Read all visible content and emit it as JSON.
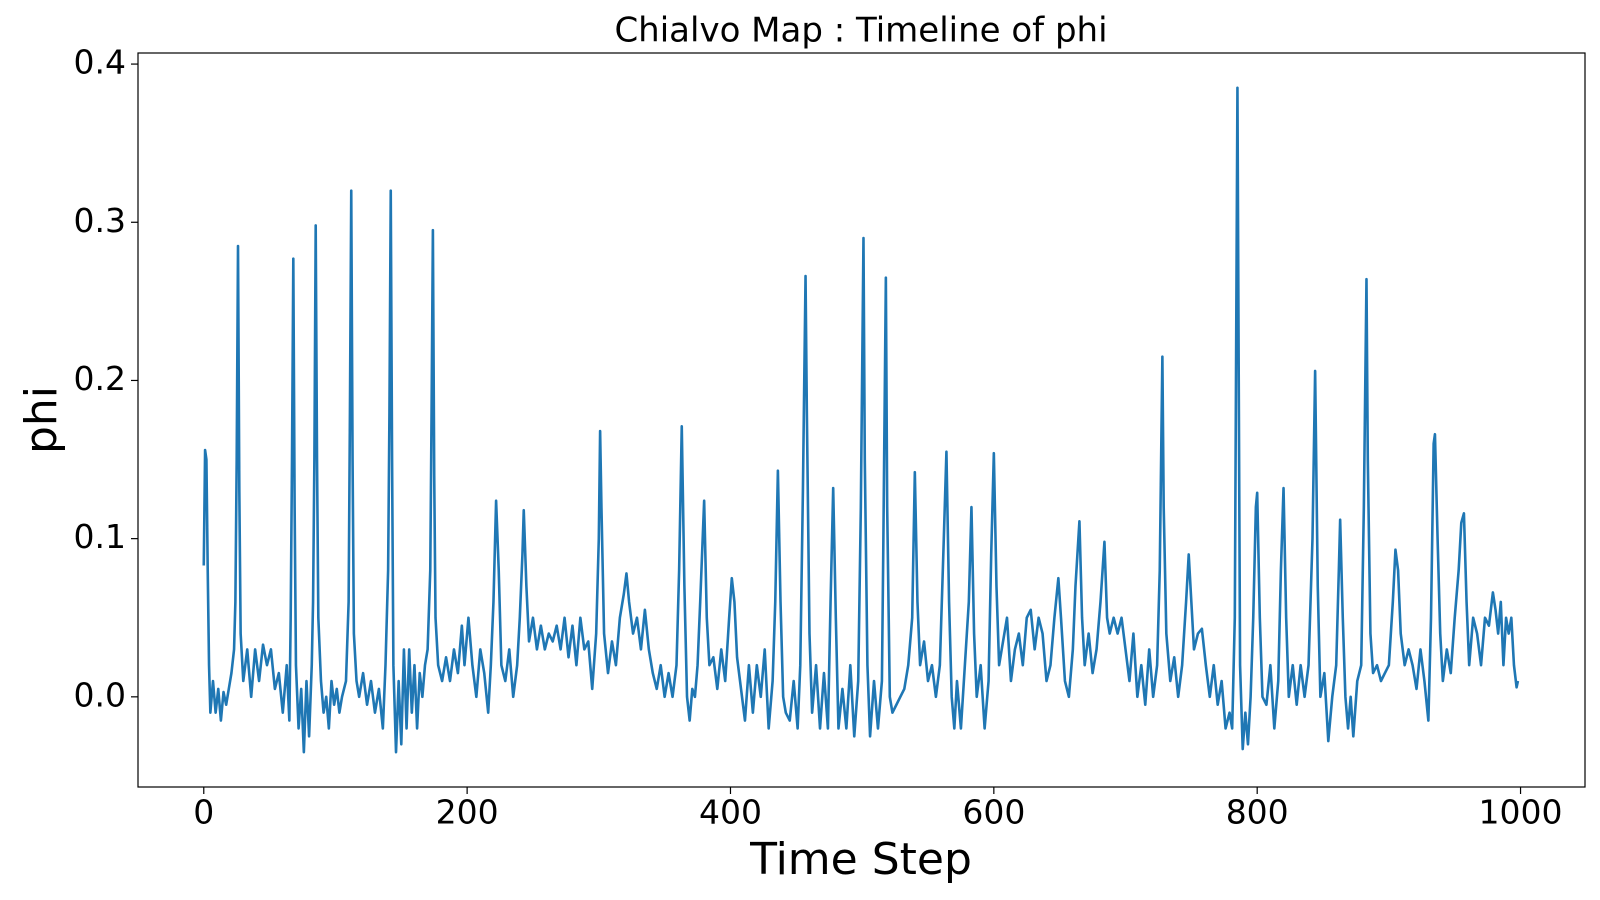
{
  "chart_data": {
    "type": "line",
    "title": "Chialvo Map : Timeline of phi",
    "xlabel": "Time Step",
    "ylabel": "phi",
    "xlim": [
      -49.95,
      1048.95
    ],
    "ylim": [
      -0.057,
      0.407
    ],
    "xticks": [
      0,
      200,
      400,
      600,
      800,
      1000
    ],
    "yticks": [
      {
        "value": 0,
        "label": "0.0"
      },
      0.1,
      0.2,
      0.3,
      0.4
    ],
    "grid": false,
    "series": [
      {
        "color": "#1f77b4",
        "x": [
          0,
          1,
          2,
          3,
          4,
          5,
          7,
          9,
          11,
          13,
          15,
          17,
          19,
          21,
          23,
          24,
          25,
          26,
          27,
          28,
          30,
          33,
          36,
          39,
          42,
          45,
          48,
          51,
          54,
          57,
          60,
          63,
          65,
          66,
          67,
          68,
          69,
          70,
          72,
          74,
          76,
          78,
          80,
          82,
          83,
          84,
          85,
          86,
          87,
          89,
          91,
          93,
          95,
          97,
          99,
          101,
          103,
          105,
          108,
          110,
          111,
          112,
          113,
          114,
          116,
          118,
          121,
          124,
          127,
          130,
          133,
          136,
          138,
          140,
          141,
          142,
          143,
          144,
          146,
          148,
          150,
          152,
          154,
          156,
          158,
          160,
          162,
          164,
          166,
          168,
          170,
          172,
          173,
          174,
          175,
          176,
          178,
          181,
          184,
          187,
          190,
          193,
          196,
          198,
          201,
          204,
          207,
          210,
          213,
          216,
          218,
          220,
          222,
          224,
          226,
          229,
          232,
          235,
          238,
          240,
          242,
          243,
          245,
          247,
          250,
          253,
          256,
          259,
          262,
          265,
          268,
          271,
          274,
          277,
          280,
          283,
          286,
          289,
          292,
          295,
          298,
          300,
          301,
          302,
          304,
          307,
          310,
          313,
          316,
          319,
          321,
          323,
          326,
          329,
          332,
          335,
          338,
          341,
          344,
          347,
          350,
          353,
          356,
          359,
          361,
          363,
          365,
          367,
          369,
          371,
          373,
          375,
          377,
          380,
          382,
          384,
          387,
          390,
          393,
          396,
          399,
          401,
          403,
          405,
          408,
          411,
          414,
          417,
          420,
          423,
          426,
          429,
          432,
          434,
          436,
          438,
          440,
          442,
          445,
          448,
          451,
          453,
          455,
          457,
          458,
          460,
          462,
          465,
          468,
          471,
          474,
          476,
          478,
          480,
          482,
          485,
          488,
          491,
          494,
          497,
          499,
          501,
          502,
          504,
          506,
          509,
          512,
          515,
          516,
          518,
          519,
          521,
          523,
          526,
          529,
          532,
          535,
          538,
          540,
          542,
          544,
          547,
          550,
          553,
          556,
          559,
          562,
          564,
          566,
          568,
          570,
          572,
          575,
          578,
          581,
          583,
          585,
          587,
          590,
          593,
          596,
          598,
          600,
          602,
          604,
          607,
          610,
          613,
          616,
          619,
          622,
          625,
          628,
          631,
          634,
          637,
          640,
          643,
          646,
          649,
          651,
          654,
          657,
          660,
          662,
          665,
          667,
          669,
          672,
          675,
          678,
          681,
          684,
          686,
          688,
          691,
          694,
          697,
          700,
          703,
          706,
          709,
          712,
          715,
          718,
          721,
          724,
          726,
          728,
          729,
          731,
          734,
          737,
          740,
          743,
          746,
          748,
          750,
          752,
          755,
          758,
          761,
          764,
          767,
          770,
          773,
          776,
          779,
          781,
          783,
          785,
          786,
          787,
          789,
          791,
          793,
          795,
          797,
          799,
          800,
          802,
          804,
          807,
          810,
          813,
          816,
          818,
          820,
          822,
          824,
          827,
          830,
          833,
          836,
          839,
          842,
          844,
          846,
          848,
          851,
          854,
          857,
          860,
          862,
          863,
          865,
          867,
          869,
          871,
          873,
          876,
          879,
          881,
          883,
          884,
          886,
          888,
          891,
          894,
          897,
          900,
          903,
          905,
          907,
          909,
          912,
          915,
          918,
          921,
          924,
          927,
          930,
          932,
          934,
          935,
          937,
          939,
          941,
          944,
          947,
          950,
          953,
          955,
          957,
          959,
          961,
          964,
          967,
          970,
          973,
          976,
          979,
          981,
          983,
          985,
          987,
          989,
          991,
          993,
          995,
          997,
          998
        ],
        "values": [
          0.083,
          0.156,
          0.15,
          0.08,
          0.02,
          -0.01,
          0.01,
          -0.01,
          0.005,
          -0.015,
          0.003,
          -0.005,
          0.005,
          0.015,
          0.03,
          0.06,
          0.15,
          0.285,
          0.13,
          0.04,
          0.01,
          0.03,
          0.0,
          0.03,
          0.01,
          0.033,
          0.02,
          0.03,
          0.005,
          0.015,
          -0.01,
          0.02,
          -0.015,
          0.05,
          0.15,
          0.277,
          0.12,
          0.02,
          -0.02,
          0.005,
          -0.035,
          0.01,
          -0.025,
          0.02,
          0.06,
          0.15,
          0.298,
          0.15,
          0.05,
          0.01,
          -0.01,
          0.0,
          -0.02,
          0.01,
          -0.005,
          0.005,
          -0.01,
          0.0,
          0.01,
          0.06,
          0.18,
          0.32,
          0.15,
          0.04,
          0.01,
          0.0,
          0.015,
          -0.005,
          0.01,
          -0.01,
          0.005,
          -0.02,
          0.02,
          0.08,
          0.18,
          0.32,
          0.15,
          0.02,
          -0.035,
          0.01,
          -0.03,
          0.03,
          -0.02,
          0.03,
          -0.01,
          0.02,
          -0.02,
          0.015,
          0.0,
          0.02,
          0.03,
          0.08,
          0.18,
          0.295,
          0.14,
          0.05,
          0.02,
          0.01,
          0.025,
          0.01,
          0.03,
          0.015,
          0.045,
          0.02,
          0.05,
          0.02,
          0.0,
          0.03,
          0.015,
          -0.01,
          0.02,
          0.06,
          0.124,
          0.08,
          0.02,
          0.01,
          0.03,
          0.0,
          0.02,
          0.05,
          0.09,
          0.118,
          0.07,
          0.035,
          0.05,
          0.03,
          0.045,
          0.03,
          0.04,
          0.035,
          0.045,
          0.03,
          0.05,
          0.025,
          0.045,
          0.02,
          0.05,
          0.03,
          0.035,
          0.005,
          0.04,
          0.1,
          0.168,
          0.12,
          0.04,
          0.015,
          0.035,
          0.02,
          0.05,
          0.065,
          0.078,
          0.06,
          0.04,
          0.05,
          0.03,
          0.055,
          0.03,
          0.015,
          0.005,
          0.02,
          0.0,
          0.015,
          0.0,
          0.02,
          0.08,
          0.171,
          0.07,
          0.0,
          -0.015,
          0.005,
          0.0,
          0.02,
          0.06,
          0.124,
          0.05,
          0.02,
          0.025,
          0.005,
          0.03,
          0.01,
          0.05,
          0.075,
          0.06,
          0.025,
          0.005,
          -0.015,
          0.02,
          -0.01,
          0.02,
          0.0,
          0.03,
          -0.02,
          0.01,
          0.06,
          0.143,
          0.06,
          0.0,
          -0.01,
          -0.015,
          0.01,
          -0.02,
          0.02,
          0.13,
          0.266,
          0.18,
          0.04,
          -0.01,
          0.02,
          -0.02,
          0.015,
          -0.02,
          0.06,
          0.132,
          0.05,
          -0.02,
          0.005,
          -0.02,
          0.02,
          -0.025,
          0.01,
          0.12,
          0.29,
          0.15,
          0.02,
          -0.025,
          0.01,
          -0.02,
          0.01,
          0.09,
          0.265,
          0.12,
          0.0,
          -0.01,
          -0.005,
          0.0,
          0.005,
          0.02,
          0.05,
          0.142,
          0.06,
          0.02,
          0.035,
          0.01,
          0.02,
          0.0,
          0.02,
          0.1,
          0.155,
          0.06,
          0.0,
          -0.02,
          0.01,
          -0.02,
          0.02,
          0.06,
          0.12,
          0.04,
          0.0,
          0.02,
          -0.02,
          0.01,
          0.09,
          0.154,
          0.07,
          0.02,
          0.035,
          0.05,
          0.01,
          0.03,
          0.04,
          0.02,
          0.05,
          0.055,
          0.03,
          0.05,
          0.04,
          0.01,
          0.02,
          0.05,
          0.075,
          0.05,
          0.01,
          0.0,
          0.03,
          0.07,
          0.111,
          0.05,
          0.02,
          0.04,
          0.015,
          0.03,
          0.06,
          0.098,
          0.05,
          0.04,
          0.05,
          0.04,
          0.05,
          0.03,
          0.01,
          0.04,
          0.0,
          0.02,
          -0.005,
          0.03,
          0.0,
          0.02,
          0.08,
          0.215,
          0.12,
          0.04,
          0.01,
          0.025,
          0.0,
          0.02,
          0.06,
          0.09,
          0.06,
          0.03,
          0.04,
          0.043,
          0.02,
          0.0,
          0.02,
          -0.005,
          0.01,
          -0.02,
          -0.01,
          -0.02,
          0.05,
          0.385,
          0.2,
          0.02,
          -0.033,
          -0.01,
          -0.03,
          0.0,
          0.05,
          0.12,
          0.129,
          0.05,
          0.0,
          -0.005,
          0.02,
          -0.02,
          0.01,
          0.08,
          0.132,
          0.05,
          0.0,
          0.02,
          -0.005,
          0.02,
          0.0,
          0.02,
          0.1,
          0.206,
          0.07,
          0.0,
          0.015,
          -0.028,
          0.0,
          0.02,
          0.08,
          0.112,
          0.05,
          0.0,
          -0.02,
          0.0,
          -0.025,
          0.01,
          0.02,
          0.12,
          0.264,
          0.15,
          0.04,
          0.015,
          0.02,
          0.01,
          0.015,
          0.02,
          0.06,
          0.093,
          0.08,
          0.04,
          0.02,
          0.03,
          0.02,
          0.005,
          0.03,
          0.01,
          -0.015,
          0.05,
          0.16,
          0.166,
          0.1,
          0.04,
          0.01,
          0.03,
          0.015,
          0.05,
          0.08,
          0.11,
          0.116,
          0.06,
          0.02,
          0.05,
          0.04,
          0.02,
          0.05,
          0.045,
          0.066,
          0.055,
          0.04,
          0.06,
          0.02,
          0.05,
          0.04,
          0.05,
          0.02,
          0.006,
          0.01
        ]
      }
    ]
  }
}
